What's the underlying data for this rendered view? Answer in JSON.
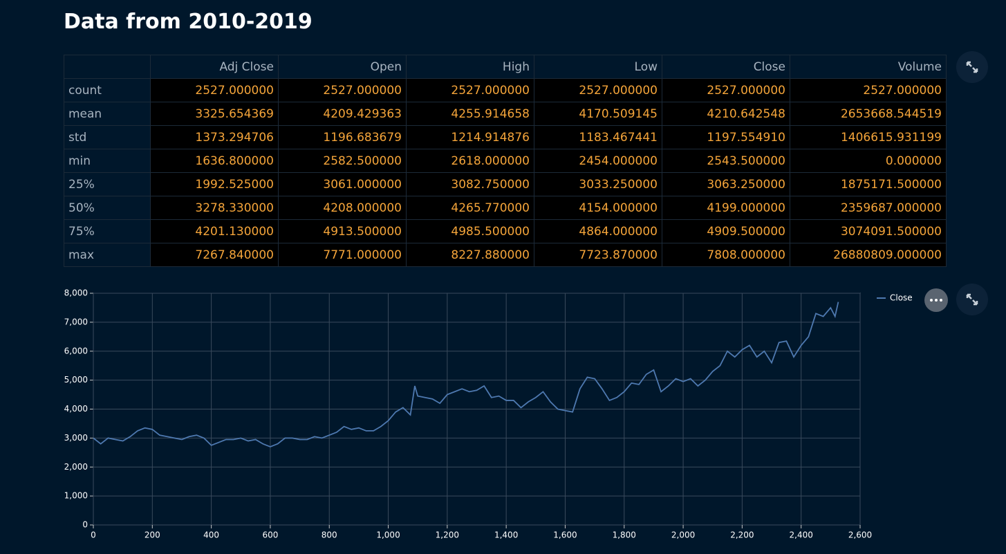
{
  "header": {
    "title": "Data from 2010-2019"
  },
  "table": {
    "columns": [
      "Adj Close",
      "Open",
      "High",
      "Low",
      "Close",
      "Volume"
    ],
    "rows": [
      [
        "count",
        "2527.000000",
        "2527.000000",
        "2527.000000",
        "2527.000000",
        "2527.000000",
        "2527.000000"
      ],
      [
        "mean",
        "3325.654369",
        "4209.429363",
        "4255.914658",
        "4170.509145",
        "4210.642548",
        "2653668.544519"
      ],
      [
        "std",
        "1373.294706",
        "1196.683679",
        "1214.914876",
        "1183.467441",
        "1197.554910",
        "1406615.931199"
      ],
      [
        "min",
        "1636.800000",
        "2582.500000",
        "2618.000000",
        "2454.000000",
        "2543.500000",
        "0.000000"
      ],
      [
        "25%",
        "1992.525000",
        "3061.000000",
        "3082.750000",
        "3033.250000",
        "3063.250000",
        "1875171.500000"
      ],
      [
        "50%",
        "3278.330000",
        "4208.000000",
        "4265.770000",
        "4154.000000",
        "4199.000000",
        "2359687.000000"
      ],
      [
        "75%",
        "4201.130000",
        "4913.500000",
        "4985.500000",
        "4864.000000",
        "4909.500000",
        "3074091.500000"
      ],
      [
        "max",
        "7267.840000",
        "7771.000000",
        "8227.880000",
        "7723.870000",
        "7808.000000",
        "26880809.000000"
      ]
    ]
  },
  "chart_data": {
    "type": "line",
    "x": [
      0,
      25,
      50,
      75,
      100,
      125,
      150,
      175,
      200,
      225,
      250,
      275,
      300,
      325,
      350,
      375,
      400,
      425,
      450,
      475,
      500,
      525,
      550,
      575,
      600,
      625,
      650,
      675,
      700,
      725,
      750,
      775,
      800,
      825,
      850,
      875,
      900,
      925,
      950,
      975,
      1000,
      1025,
      1050,
      1075,
      1090,
      1100,
      1125,
      1150,
      1175,
      1200,
      1225,
      1250,
      1275,
      1300,
      1325,
      1350,
      1375,
      1400,
      1425,
      1450,
      1475,
      1500,
      1525,
      1550,
      1575,
      1600,
      1625,
      1650,
      1675,
      1700,
      1725,
      1750,
      1775,
      1800,
      1825,
      1850,
      1875,
      1900,
      1925,
      1950,
      1975,
      2000,
      2025,
      2050,
      2075,
      2100,
      2125,
      2150,
      2175,
      2200,
      2225,
      2250,
      2275,
      2300,
      2325,
      2350,
      2375,
      2400,
      2425,
      2450,
      2475,
      2500,
      2515,
      2526
    ],
    "series": [
      {
        "name": "Close",
        "color": "#4e79b0",
        "values": [
          3000,
          2800,
          3000,
          2950,
          2900,
          3050,
          3250,
          3350,
          3300,
          3100,
          3050,
          3000,
          2950,
          3050,
          3100,
          3000,
          2750,
          2850,
          2950,
          2950,
          3000,
          2900,
          2950,
          2800,
          2700,
          2800,
          3000,
          3000,
          2950,
          2950,
          3050,
          3000,
          3100,
          3200,
          3400,
          3300,
          3350,
          3250,
          3250,
          3400,
          3600,
          3900,
          4050,
          3800,
          4800,
          4450,
          4400,
          4350,
          4200,
          4500,
          4600,
          4700,
          4600,
          4650,
          4800,
          4400,
          4450,
          4300,
          4300,
          4050,
          4250,
          4400,
          4600,
          4250,
          4000,
          3950,
          3900,
          4700,
          5100,
          5050,
          4700,
          4300,
          4400,
          4600,
          4900,
          4850,
          5200,
          5350,
          4600,
          4800,
          5050,
          4950,
          5050,
          4800,
          5000,
          5300,
          5500,
          6000,
          5800,
          6050,
          6200,
          5800,
          6000,
          5600,
          6300,
          6350,
          5800,
          6200,
          6500,
          7300,
          7200,
          7500,
          7200,
          7700
        ]
      }
    ],
    "xlim": [
      0,
      2600
    ],
    "xticks": [
      0,
      200,
      400,
      600,
      800,
      {
        "value": 1000,
        "label": "1,000"
      },
      {
        "value": 1200,
        "label": "1,200"
      },
      {
        "value": 1400,
        "label": "1,400"
      },
      {
        "value": 1600,
        "label": "1,600"
      },
      {
        "value": 1800,
        "label": "1,800"
      },
      {
        "value": 2000,
        "label": "2,000"
      },
      {
        "value": 2200,
        "label": "2,200"
      },
      {
        "value": 2400,
        "label": "2,400"
      },
      {
        "value": 2600,
        "label": "2,600"
      }
    ],
    "ylim": [
      0,
      8000
    ],
    "yticks": [
      0,
      {
        "value": 1000,
        "label": "1,000"
      },
      {
        "value": 2000,
        "label": "2,000"
      },
      {
        "value": 3000,
        "label": "3,000"
      },
      {
        "value": 4000,
        "label": "4,000"
      },
      {
        "value": 5000,
        "label": "5,000"
      },
      {
        "value": 6000,
        "label": "6,000"
      },
      {
        "value": 7000,
        "label": "7,000"
      },
      {
        "value": 8000,
        "label": "8,000"
      }
    ],
    "grid": true
  }
}
